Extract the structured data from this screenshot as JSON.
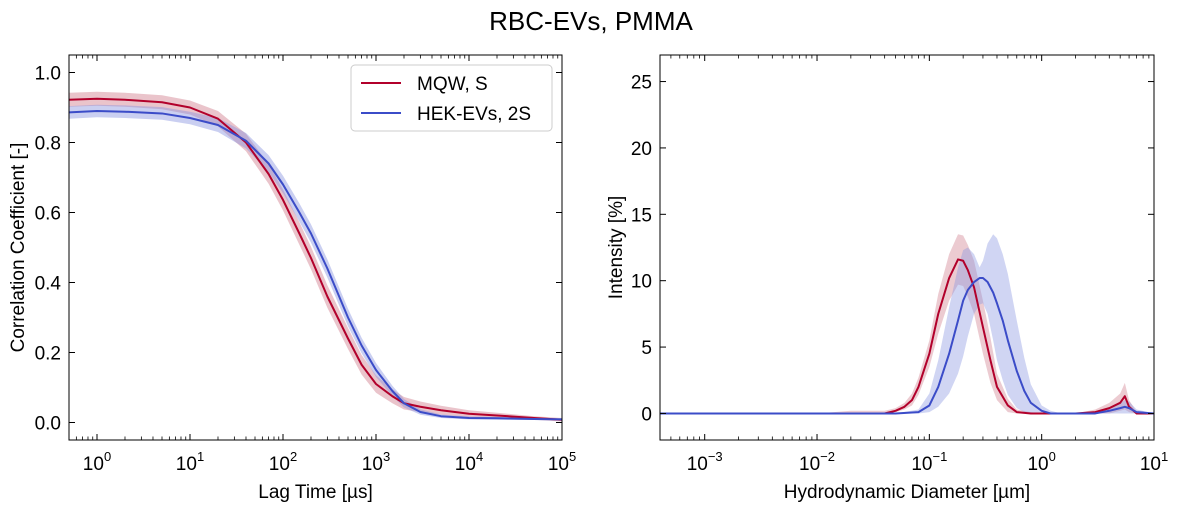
{
  "figure": {
    "title": "RBC-EVs, PMMA"
  },
  "colors": {
    "series1": "#b2002b",
    "series2": "#3b4cc8",
    "band1": "#d07c8c",
    "band2": "#8a95e0"
  },
  "chart_data": [
    {
      "type": "line",
      "xscale": "log",
      "xlabel": "Lag Time [µs]",
      "ylabel": "Correlation Coefficient [-]",
      "xlim": [
        0.5,
        100000
      ],
      "ylim": [
        -0.05,
        1.05
      ],
      "xticks": [
        {
          "value": 1,
          "base": "10",
          "exp": "0"
        },
        {
          "value": 10,
          "base": "10",
          "exp": "1"
        },
        {
          "value": 100,
          "base": "10",
          "exp": "2"
        },
        {
          "value": 1000,
          "base": "10",
          "exp": "3"
        },
        {
          "value": 10000,
          "base": "10",
          "exp": "4"
        },
        {
          "value": 100000,
          "base": "10",
          "exp": "5"
        }
      ],
      "yticks": [
        {
          "value": 0.0,
          "label": "0.0"
        },
        {
          "value": 0.2,
          "label": "0.2"
        },
        {
          "value": 0.4,
          "label": "0.4"
        },
        {
          "value": 0.6,
          "label": "0.6"
        },
        {
          "value": 0.8,
          "label": "0.8"
        },
        {
          "value": 1.0,
          "label": "1.0"
        }
      ],
      "legend": {
        "position": "top-right"
      },
      "series": [
        {
          "name": "MQW, S",
          "color": "#b2002b",
          "band_color": "#d07c8c",
          "x": [
            0.5,
            1,
            2,
            5,
            10,
            20,
            40,
            70,
            100,
            150,
            200,
            300,
            500,
            700,
            1000,
            1500,
            2000,
            3000,
            5000,
            10000,
            20000,
            50000,
            100000
          ],
          "y": [
            0.922,
            0.925,
            0.922,
            0.915,
            0.9,
            0.868,
            0.8,
            0.71,
            0.636,
            0.54,
            0.47,
            0.36,
            0.24,
            0.165,
            0.11,
            0.075,
            0.055,
            0.045,
            0.035,
            0.025,
            0.02,
            0.013,
            0.008
          ],
          "band": [
            0.02,
            0.02,
            0.02,
            0.02,
            0.02,
            0.022,
            0.025,
            0.028,
            0.03,
            0.032,
            0.032,
            0.032,
            0.03,
            0.028,
            0.025,
            0.02,
            0.018,
            0.015,
            0.013,
            0.01,
            0.008,
            0.005,
            0.005
          ]
        },
        {
          "name": "HEK-EVs, 2S",
          "color": "#3b4cc8",
          "band_color": "#8a95e0",
          "x": [
            0.5,
            1,
            2,
            5,
            10,
            20,
            40,
            70,
            100,
            150,
            200,
            300,
            500,
            700,
            1000,
            1500,
            2000,
            3000,
            5000,
            10000,
            20000,
            50000,
            100000
          ],
          "y": [
            0.886,
            0.89,
            0.888,
            0.883,
            0.87,
            0.85,
            0.805,
            0.74,
            0.68,
            0.6,
            0.54,
            0.44,
            0.3,
            0.22,
            0.15,
            0.09,
            0.055,
            0.03,
            0.018,
            0.013,
            0.012,
            0.01,
            0.009
          ],
          "band": [
            0.018,
            0.018,
            0.018,
            0.018,
            0.018,
            0.02,
            0.022,
            0.024,
            0.025,
            0.026,
            0.026,
            0.026,
            0.025,
            0.022,
            0.02,
            0.015,
            0.012,
            0.008,
            0.005,
            0.004,
            0.004,
            0.003,
            0.003
          ]
        }
      ]
    },
    {
      "type": "line",
      "xscale": "log",
      "xlabel": "Hydrodynamic Diameter [µm]",
      "ylabel": "Intensity [%]",
      "xlim": [
        0.0004,
        10
      ],
      "ylim": [
        -2,
        27
      ],
      "xticks": [
        {
          "value": 0.001,
          "base": "10",
          "exp": "−3"
        },
        {
          "value": 0.01,
          "base": "10",
          "exp": "−2"
        },
        {
          "value": 0.1,
          "base": "10",
          "exp": "−1"
        },
        {
          "value": 1,
          "base": "10",
          "exp": "0"
        },
        {
          "value": 10,
          "base": "10",
          "exp": "1"
        }
      ],
      "yticks": [
        {
          "value": 0,
          "label": "0"
        },
        {
          "value": 5,
          "label": "5"
        },
        {
          "value": 10,
          "label": "10"
        },
        {
          "value": 15,
          "label": "15"
        },
        {
          "value": 20,
          "label": "20"
        },
        {
          "value": 25,
          "label": "25"
        }
      ],
      "series": [
        {
          "name": "MQW, S",
          "color": "#b2002b",
          "band_color": "#d07c8c",
          "x": [
            0.0004,
            0.01,
            0.02,
            0.04,
            0.05,
            0.06,
            0.07,
            0.08,
            0.1,
            0.12,
            0.15,
            0.18,
            0.2,
            0.22,
            0.25,
            0.3,
            0.35,
            0.4,
            0.5,
            0.6,
            0.8,
            1.0,
            1.5,
            2.0,
            3.0,
            4.0,
            5.0,
            5.5,
            6.0,
            7.0,
            10
          ],
          "y": [
            0,
            0,
            0,
            0,
            0.2,
            0.5,
            1.0,
            2.0,
            4.5,
            7.5,
            10.2,
            11.6,
            11.5,
            10.8,
            9.5,
            6.5,
            4.0,
            2.0,
            0.6,
            0.1,
            0,
            0,
            0,
            0,
            0.1,
            0.4,
            0.8,
            1.3,
            0.5,
            0,
            0
          ],
          "lower": [
            0,
            0,
            0,
            0,
            0.1,
            0.3,
            0.6,
            1.4,
            3.5,
            6.0,
            8.5,
            9.7,
            9.6,
            8.8,
            7.5,
            4.5,
            2.3,
            1.0,
            0.1,
            0,
            0,
            0,
            0,
            0,
            0,
            0,
            0.2,
            0.3,
            0.1,
            0,
            0
          ],
          "upper": [
            0,
            0,
            0.2,
            0.2,
            0.4,
            0.8,
            1.5,
            2.7,
            5.5,
            9.0,
            12.0,
            13.5,
            13.4,
            12.7,
            11.5,
            8.5,
            5.7,
            3.0,
            1.1,
            0.3,
            0.1,
            0,
            0,
            0,
            0.3,
            0.8,
            1.5,
            2.3,
            1.0,
            0.1,
            0
          ]
        },
        {
          "name": "HEK-EVs, 2S",
          "color": "#3b4cc8",
          "band_color": "#8a95e0",
          "x": [
            0.0004,
            0.05,
            0.08,
            0.1,
            0.12,
            0.15,
            0.18,
            0.2,
            0.22,
            0.25,
            0.28,
            0.3,
            0.33,
            0.37,
            0.4,
            0.45,
            0.5,
            0.6,
            0.7,
            0.8,
            1.0,
            1.2,
            1.5,
            2.0,
            3.0,
            4.0,
            5.0,
            5.5,
            6.0,
            7.0,
            10
          ],
          "y": [
            0,
            0,
            0.1,
            0.6,
            2.0,
            4.5,
            7.0,
            8.5,
            9.3,
            9.9,
            10.2,
            10.2,
            9.9,
            9.1,
            8.3,
            7.0,
            5.5,
            3.2,
            1.7,
            0.8,
            0.2,
            0,
            0,
            0,
            0,
            0.2,
            0.4,
            0.5,
            0.4,
            0.1,
            0
          ],
          "lower": [
            0,
            0,
            0,
            0.1,
            0.5,
            1.5,
            3.0,
            4.3,
            5.8,
            7.5,
            8.2,
            8.3,
            7.5,
            5.5,
            4.0,
            2.5,
            1.4,
            0.4,
            0.1,
            0,
            0,
            0,
            0,
            0,
            0,
            0,
            0,
            0,
            0,
            0,
            0
          ],
          "upper": [
            0,
            0,
            0.3,
            1.5,
            4.0,
            8.0,
            11.0,
            12.3,
            12.5,
            12.0,
            11.0,
            11.5,
            12.8,
            13.5,
            13.2,
            12.0,
            10.5,
            7.0,
            4.2,
            2.2,
            0.6,
            0.2,
            0,
            0,
            0.1,
            0.4,
            0.8,
            1.0,
            0.9,
            0.3,
            0
          ]
        }
      ]
    }
  ]
}
